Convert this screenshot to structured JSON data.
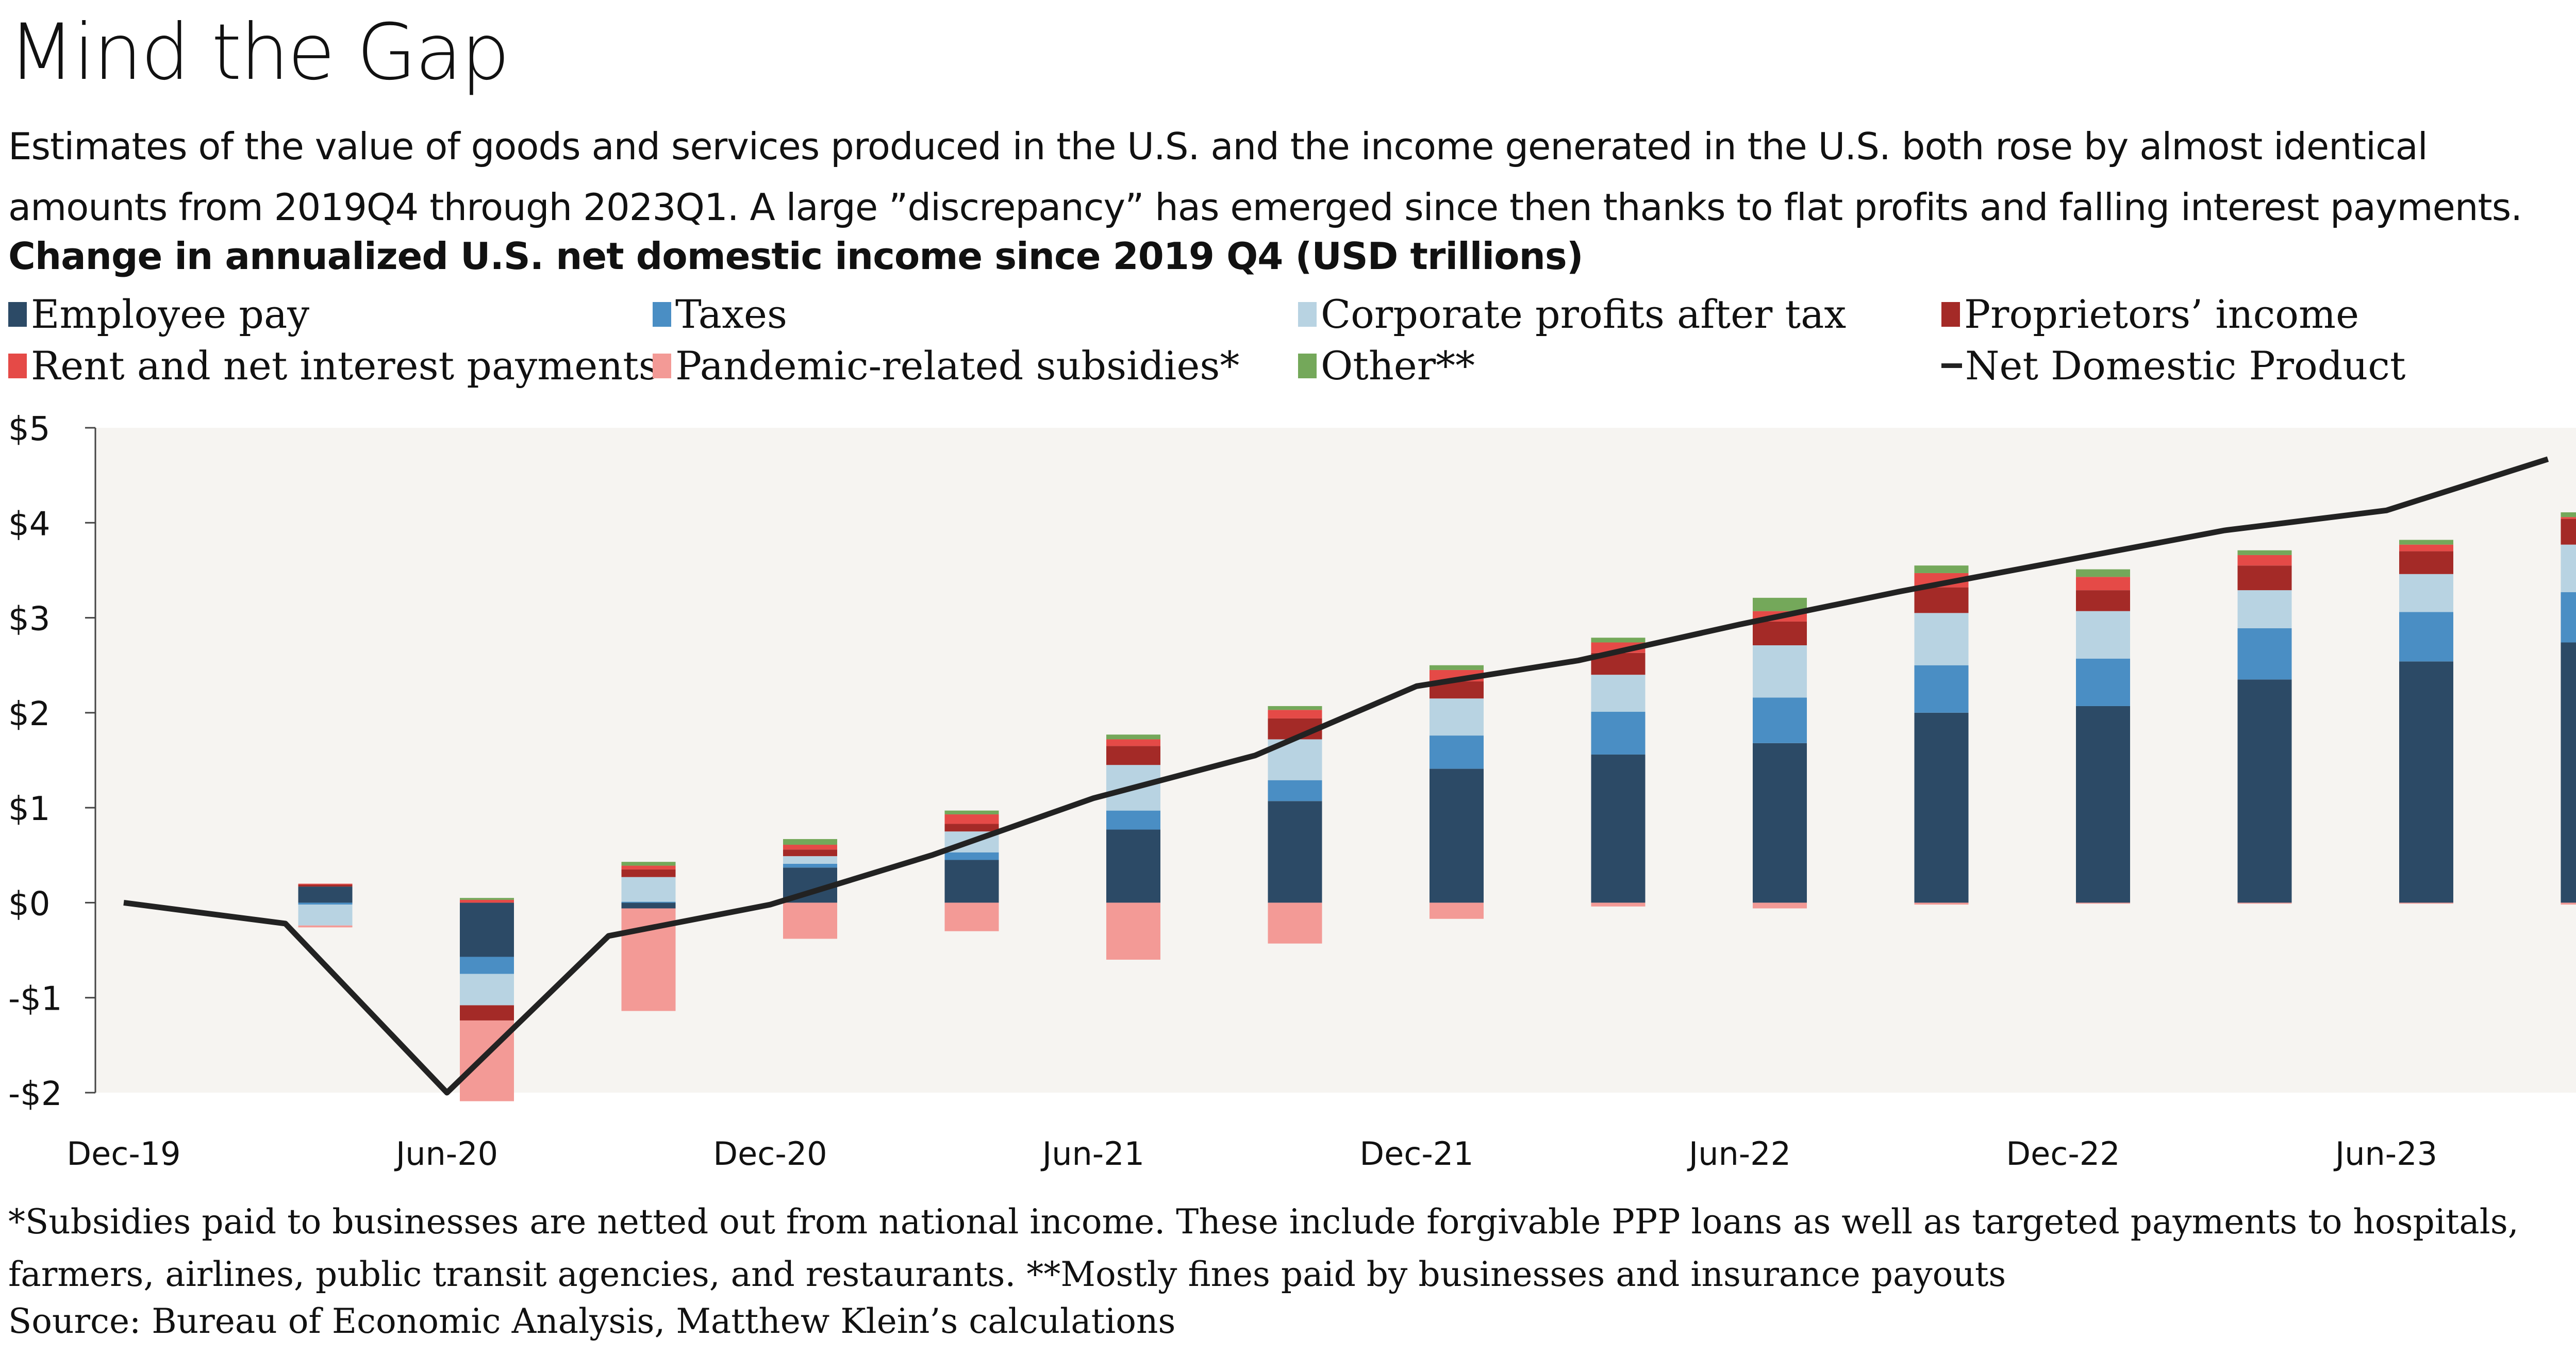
{
  "title": "Mind the Gap",
  "subtitle": "Estimates of the value of goods and services produced in the U.S. and the income generated in the U.S. both rose by almost identical amounts from 2019Q4 through 2023Q1. A large ”discrepancy” has emerged since then thanks to flat profits and falling interest payments.",
  "chart_title": "Change in annualized U.S. net domestic income since 2019 Q4 (USD trillions)",
  "legend": [
    {
      "label": "Employee pay",
      "color": "#2c4a66"
    },
    {
      "label": "Taxes",
      "color": "#4a8ec4"
    },
    {
      "label": "Corporate profits after tax",
      "color": "#b8d3e2"
    },
    {
      "label": "Proprietors’ income",
      "color": "#a42a27"
    },
    {
      "label": "Rent and net interest payments",
      "color": "#e54a47"
    },
    {
      "label": "Pandemic-related subsidies*",
      "color": "#f39a96"
    },
    {
      "label": "Other**",
      "color": "#74a85a"
    },
    {
      "label": "Net Domestic Product",
      "color": "#222222"
    }
  ],
  "footnote": "*Subsidies paid to businesses are netted out from national income. These include forgivable PPP loans as well as targeted payments to hospitals, farmers, airlines, public transit agencies, and restaurants.  **Mostly fines paid by businesses and insurance payouts",
  "source": "Source: Bureau of Economic Analysis, Matthew Klein’s calculations",
  "chart_data": {
    "type": "bar",
    "stacked": true,
    "categories": [
      "Dec-19",
      "Mar-20",
      "Jun-20",
      "Sep-20",
      "Dec-20",
      "Mar-21",
      "Jun-21",
      "Sep-21",
      "Dec-21",
      "Mar-22",
      "Jun-22",
      "Sep-22",
      "Dec-22",
      "Mar-23",
      "Jun-23",
      "Sep-23"
    ],
    "x_tick_labels": [
      "Dec-19",
      "",
      "Jun-20",
      "",
      "Dec-20",
      "",
      "Jun-21",
      "",
      "Dec-21",
      "",
      "Jun-22",
      "",
      "Dec-22",
      "",
      "Jun-23",
      ""
    ],
    "y_tick_labels": [
      "$5",
      "$4",
      "$3",
      "$2",
      "$1",
      "$0",
      "-$1",
      "-$2"
    ],
    "ylim": [
      -2,
      5
    ],
    "y_ticks": [
      5,
      4,
      3,
      2,
      1,
      0,
      -1,
      -2
    ],
    "background": "#f6f4f1",
    "series": [
      {
        "name": "Employee pay",
        "color": "#2c4a66",
        "values": [
          null,
          0.17,
          -0.57,
          -0.06,
          0.37,
          0.45,
          0.77,
          1.07,
          1.41,
          1.56,
          1.68,
          2.0,
          2.07,
          2.35,
          2.54,
          2.74
        ]
      },
      {
        "name": "Taxes",
        "color": "#4a8ec4",
        "values": [
          null,
          -0.02,
          -0.18,
          0.01,
          0.04,
          0.08,
          0.2,
          0.22,
          0.35,
          0.45,
          0.48,
          0.5,
          0.5,
          0.54,
          0.52,
          0.53
        ]
      },
      {
        "name": "Corporate profits after tax",
        "color": "#b8d3e2",
        "values": [
          null,
          -0.22,
          -0.33,
          0.26,
          0.08,
          0.22,
          0.48,
          0.43,
          0.39,
          0.39,
          0.55,
          0.55,
          0.5,
          0.4,
          0.4,
          0.5
        ]
      },
      {
        "name": "Proprietors’ income",
        "color": "#a42a27",
        "values": [
          null,
          0.02,
          -0.16,
          0.08,
          0.07,
          0.08,
          0.2,
          0.22,
          0.18,
          0.23,
          0.25,
          0.27,
          0.22,
          0.26,
          0.24,
          0.27
        ]
      },
      {
        "name": "Rent and net interest payments",
        "color": "#e54a47",
        "values": [
          null,
          0.01,
          0.03,
          0.04,
          0.05,
          0.1,
          0.07,
          0.09,
          0.12,
          0.11,
          0.11,
          0.15,
          0.14,
          0.11,
          0.07,
          0.02
        ]
      },
      {
        "name": "Pandemic-related subsidies*",
        "color": "#f39a96",
        "values": [
          null,
          -0.02,
          -0.85,
          -1.08,
          -0.38,
          -0.3,
          -0.6,
          -0.43,
          -0.17,
          -0.04,
          -0.06,
          -0.02,
          -0.01,
          -0.01,
          -0.01,
          -0.02
        ]
      },
      {
        "name": "Other**",
        "color": "#74a85a",
        "values": [
          null,
          0.0,
          0.02,
          0.04,
          0.06,
          0.04,
          0.05,
          0.04,
          0.05,
          0.05,
          0.14,
          0.08,
          0.08,
          0.05,
          0.05,
          0.05
        ]
      }
    ],
    "line": {
      "name": "Net Domestic Product",
      "color": "#222222",
      "values": [
        0.0,
        -0.22,
        -2.05,
        -0.35,
        -0.02,
        0.5,
        1.1,
        1.55,
        2.28,
        2.55,
        2.93,
        3.28,
        3.6,
        3.92,
        4.13,
        4.67
      ]
    }
  }
}
